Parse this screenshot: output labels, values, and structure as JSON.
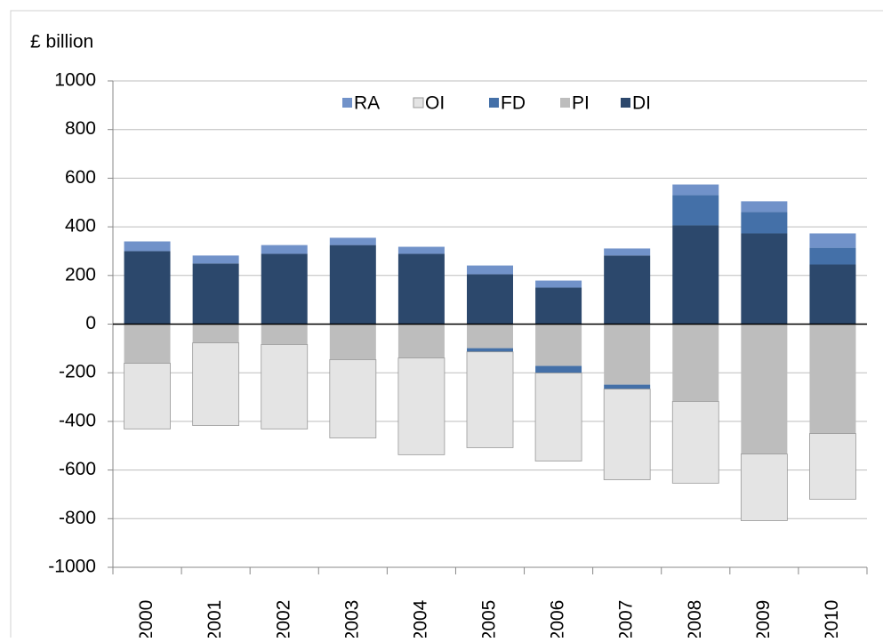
{
  "chart_data": {
    "type": "stacked-bar",
    "y_axis_label": "£ billion",
    "categories": [
      "2000",
      "2001",
      "2002",
      "2003",
      "2004",
      "2005",
      "2006",
      "2007",
      "2008",
      "2009",
      "2010"
    ],
    "series": [
      {
        "name": "RA",
        "color": "#7192c9",
        "values": [
          40,
          33,
          36,
          30,
          29,
          36,
          29,
          29,
          44,
          44,
          59
        ]
      },
      {
        "name": "OI",
        "color": "#e4e4e4",
        "values": [
          -270,
          -340,
          -347,
          -322,
          -398,
          -394,
          -362,
          -373,
          -336,
          -274,
          -270
        ]
      },
      {
        "name": "FD",
        "color": "#4470a8",
        "values": [
          0,
          0,
          0,
          0,
          0,
          -15,
          -29,
          -18,
          124,
          88,
          69
        ]
      },
      {
        "name": "PI",
        "color": "#bdbdbd",
        "values": [
          -161,
          -77,
          -84,
          -146,
          -139,
          -99,
          -172,
          -249,
          -318,
          -534,
          -450
        ]
      },
      {
        "name": "DI",
        "color": "#2c486c",
        "values": [
          300,
          249,
          289,
          325,
          289,
          205,
          150,
          282,
          406,
          373,
          245
        ]
      }
    ],
    "ylim": [
      -1000,
      1000
    ],
    "yticks": [
      -1000,
      -800,
      -600,
      -400,
      -200,
      0,
      200,
      400,
      600,
      800,
      1000
    ],
    "grid": true
  }
}
